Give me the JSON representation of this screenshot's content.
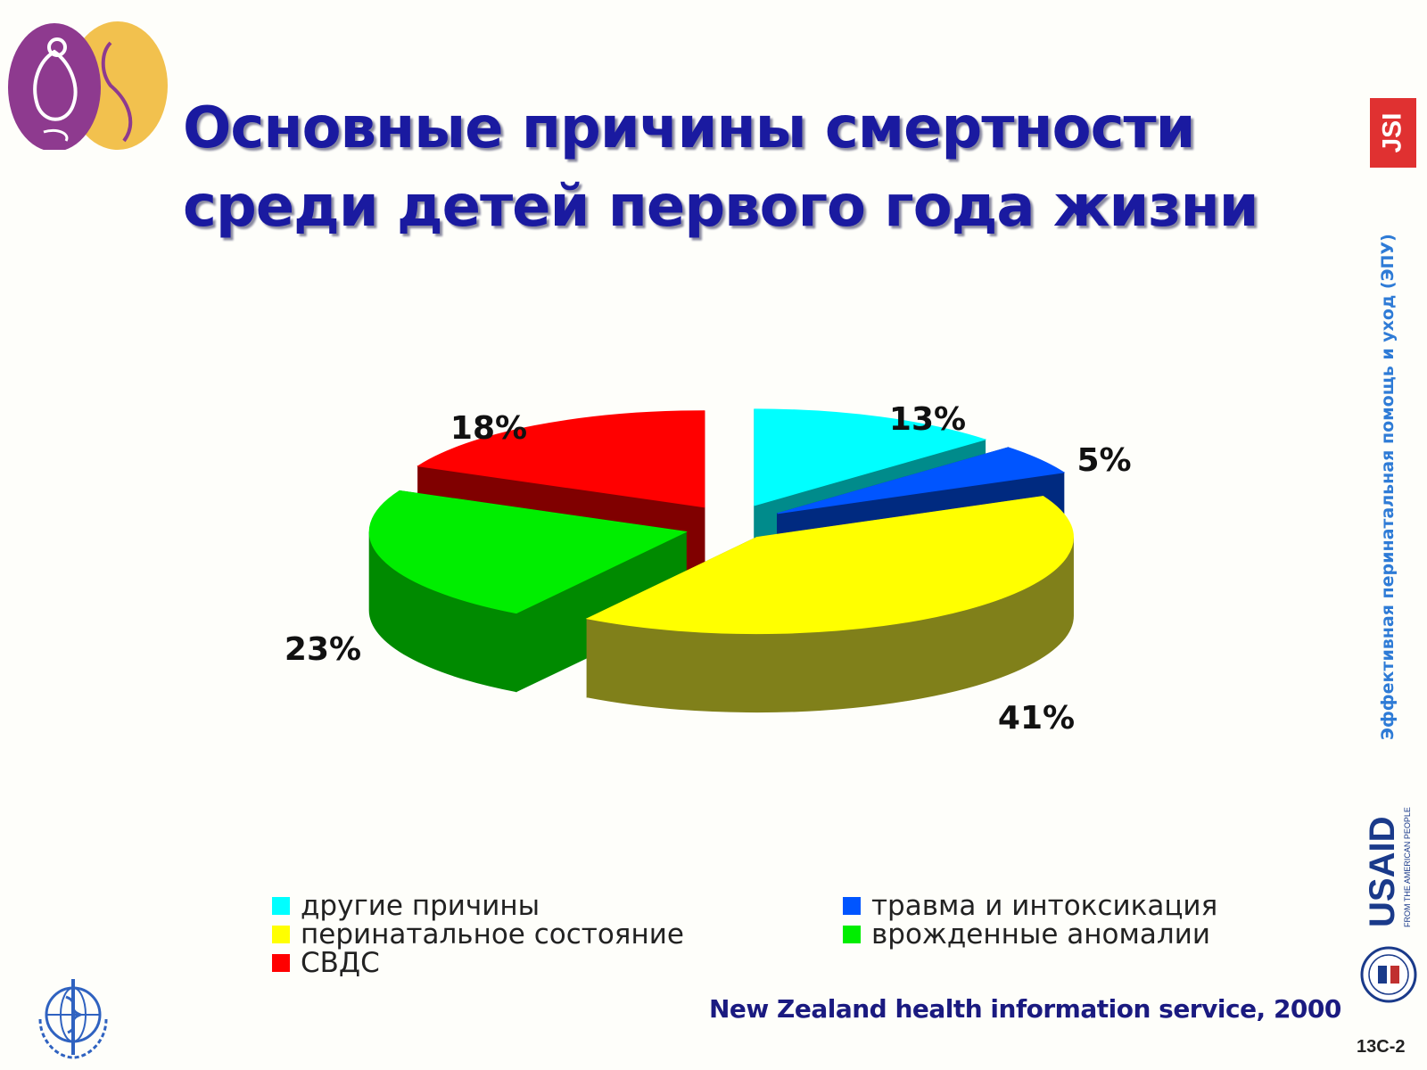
{
  "slide": {
    "title_lines": [
      "Основные причины смертности",
      "среди детей первого года жизни"
    ],
    "side_text": "Эффективная перинатальная помощь и уход (ЭПУ)",
    "jsi_logo": "JSI",
    "usaid_logo": "USAID",
    "usaid_tagline": "FROM THE AMERICAN PEOPLE",
    "source": "New Zealand health information service, 2000",
    "slide_id": "13C-2"
  },
  "chart_data": {
    "type": "pie",
    "style": "3d exploded",
    "categories": [
      "другие причины",
      "травма и интоксикация",
      "перинатальное состояние",
      "врожденные аномалии",
      "СВДС"
    ],
    "values": [
      13,
      5,
      41,
      23,
      18
    ],
    "labels": [
      "13%",
      "5%",
      "41%",
      "23%",
      "18%"
    ],
    "colors": [
      "#00ffff",
      "#0055ff",
      "#ffff00",
      "#00ee00",
      "#ff0000"
    ],
    "side_colors": [
      "#008b8b",
      "#002a80",
      "#80801a",
      "#008a00",
      "#800000"
    ],
    "legend_placement": "bottom"
  }
}
